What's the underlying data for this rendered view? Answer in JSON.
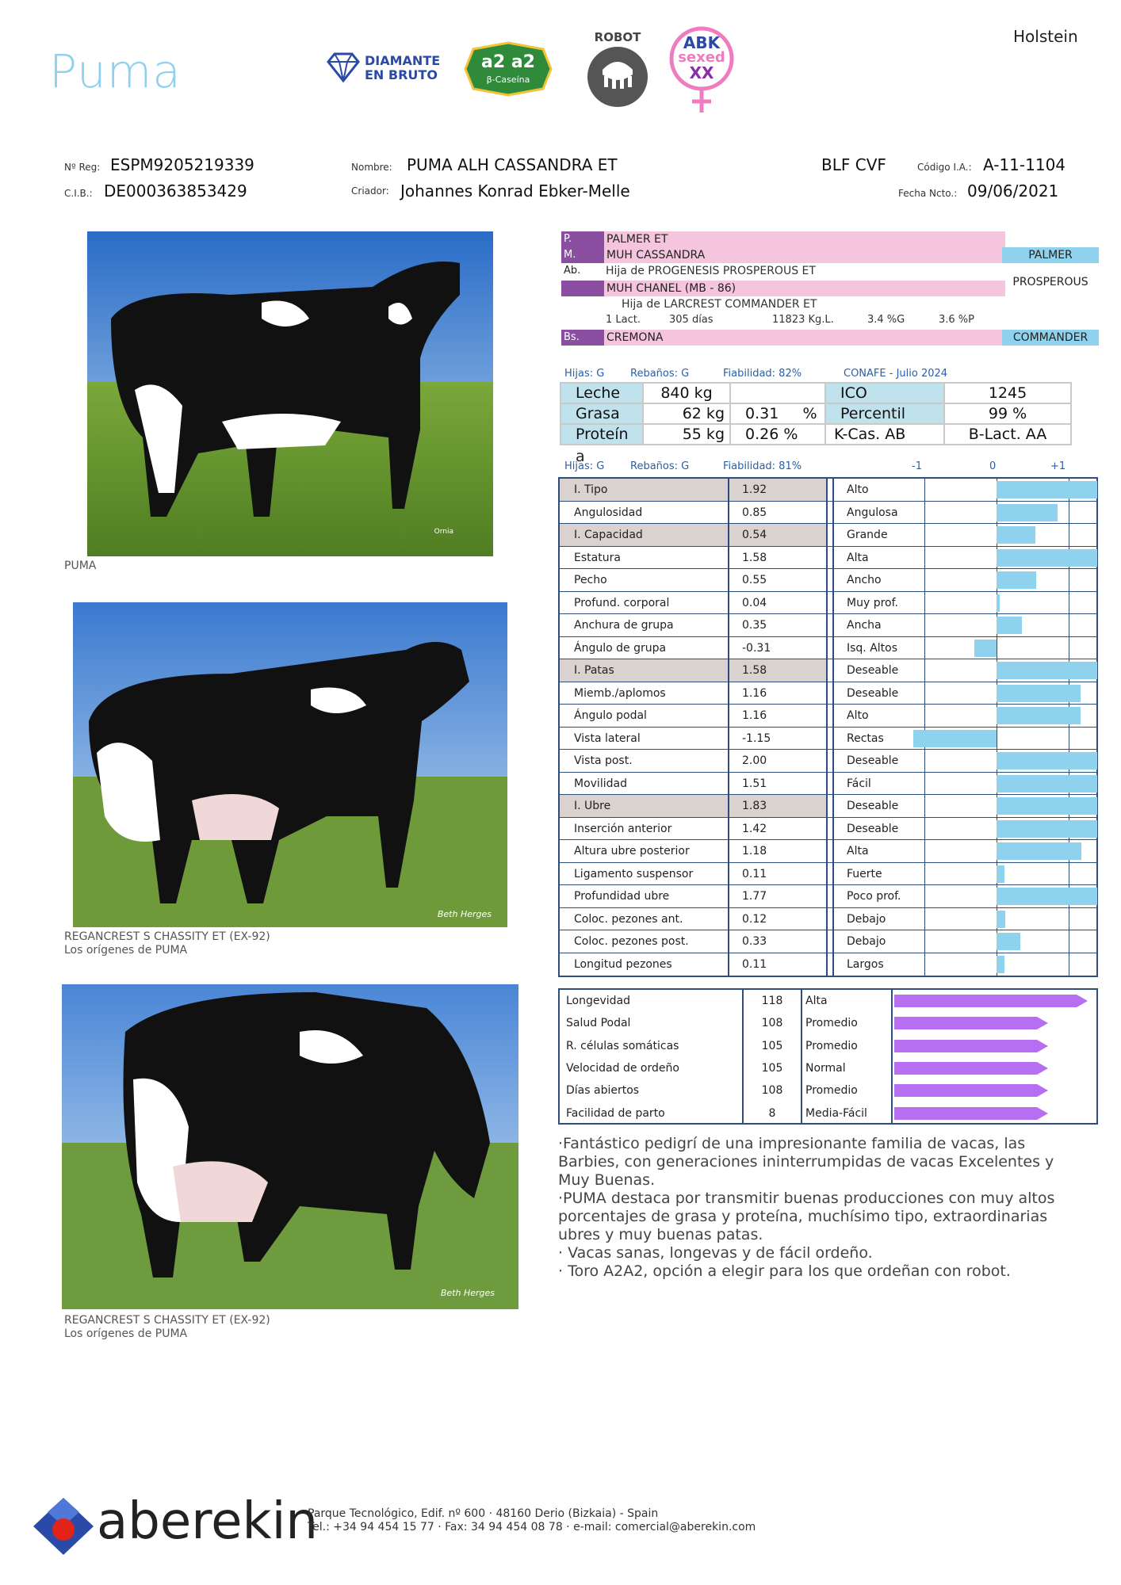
{
  "header": {
    "title": "Puma",
    "breed": "Holstein",
    "badges": {
      "diamante_line1": "DIAMANTE",
      "diamante_line2": "EN BRUTO",
      "a2": "a2 a2",
      "a2_sub": "β-Caseína",
      "robot": "ROBOT",
      "abk": "ABK",
      "sexed": "sexed",
      "xx": "XX"
    }
  },
  "id": {
    "reg_label": "Nº Reg:",
    "reg": "ESPM9205219339",
    "cib_label": "C.I.B.:",
    "cib": "DE000363853429",
    "name_label": "Nombre:",
    "name": "PUMA ALH CASSANDRA ET",
    "breeder_label": "Criador:",
    "breeder": "Johannes Konrad Ebker-Melle",
    "codes": "BLF CVF",
    "ia_label": "Código I.A.:",
    "ia": "A-11-1104",
    "birth_label": "Fecha Ncto.:",
    "birth": "09/06/2021"
  },
  "photos": [
    {
      "caption1": "PUMA",
      "caption2": "",
      "credit": "Ornia"
    },
    {
      "caption1": "REGANCREST S CHASSITY ET (EX-92)",
      "caption2": "Los orígenes de PUMA",
      "credit": "Beth Herges"
    },
    {
      "caption1": "REGANCREST S CHASSITY ET (EX-92)",
      "caption2": "Los orígenes de PUMA",
      "credit": "Beth Herges"
    }
  ],
  "pedigree": {
    "p_key": "P.",
    "p": "PALMER ET",
    "m_key": "M.",
    "m": "MUH CASSANDRA",
    "ab_key": "Ab.",
    "ab": "Hija de PROGENESIS PROSPEROUS ET",
    "gm": "MUH CHANEL    (MB - 86)",
    "gm_sub": "Hija de LARCREST COMMANDER ET",
    "lact": [
      "1 Lact.",
      "305 días",
      "11823 Kg.L.",
      "3.4 %G",
      "3.6 %P"
    ],
    "bs_key": "Bs.",
    "bs": "CREMONA",
    "tags": [
      "PALMER",
      "PROSPEROUS",
      "COMMANDER"
    ]
  },
  "production": {
    "meta": {
      "hijas": "Hijas: G",
      "rebanos": "Rebaños: G",
      "fiabilidad": "Fiabilidad: 82%",
      "source": "CONAFE - Julio 2024"
    },
    "rows": [
      {
        "label": "Leche",
        "kg": "840 kg",
        "pct": "",
        "k2": "ICO",
        "v2": "1245"
      },
      {
        "label": "Grasa",
        "kg": "62 kg",
        "pct": "0.31     %",
        "k2": "Percentil",
        "v2": "99 %"
      },
      {
        "label": "Proteín",
        "label2": "a",
        "kg": "55 kg",
        "pct": "0.26 %",
        "k2": "K-Cas. AB",
        "v2": "B-Lact. AA"
      }
    ]
  },
  "type_meta": {
    "hijas": "Hijas: G",
    "rebanos": "Rebaños: G",
    "fiabilidad": "Fiabilidad: 81%",
    "minus": "-1",
    "zero": "0",
    "plus": "+1"
  },
  "linear": [
    {
      "name": "I. Tipo",
      "value": "1.92",
      "desc": "Alto",
      "idx": true
    },
    {
      "name": "Angulosidad",
      "value": "0.85",
      "desc": "Angulosa"
    },
    {
      "name": "I. Capacidad",
      "value": "0.54",
      "desc": "Grande",
      "idx": true
    },
    {
      "name": "Estatura",
      "value": "1.58",
      "desc": "Alta"
    },
    {
      "name": "Pecho",
      "value": "0.55",
      "desc": "Ancho"
    },
    {
      "name": "Profund. corporal",
      "value": "0.04",
      "desc": "Muy  prof."
    },
    {
      "name": "Anchura de grupa",
      "value": "0.35",
      "desc": "Ancha"
    },
    {
      "name": "Ángulo de grupa",
      "value": "-0.31",
      "desc": "Isq.   Altos"
    },
    {
      "name": "I. Patas",
      "value": "1.58",
      "desc": "Deseable",
      "idx": true
    },
    {
      "name": "Miemb./aplomos",
      "value": "1.16",
      "desc": "Deseable"
    },
    {
      "name": "Ángulo podal",
      "value": "1.16",
      "desc": "Alto"
    },
    {
      "name": "Vista lateral",
      "value": "-1.15",
      "desc": "Rectas"
    },
    {
      "name": "Vista post.",
      "value": "2.00",
      "desc": "Deseable"
    },
    {
      "name": "Movilidad",
      "value": "1.51",
      "desc": "Fácil"
    },
    {
      "name": "I. Ubre",
      "value": "1.83",
      "desc": "Deseable",
      "idx": true
    },
    {
      "name": "Inserción anterior",
      "value": "1.42",
      "desc": "Deseable"
    },
    {
      "name": "Altura ubre posterior",
      "value": "1.18",
      "desc": "Alta"
    },
    {
      "name": "Ligamento suspensor",
      "value": "0.11",
      "desc": "Fuerte"
    },
    {
      "name": "Profundidad ubre",
      "value": "1.77",
      "desc": "Poco prof."
    },
    {
      "name": "Coloc. pezones ant.",
      "value": "0.12",
      "desc": "Debajo"
    },
    {
      "name": "Coloc. pezones post.",
      "value": "0.33",
      "desc": "Debajo"
    },
    {
      "name": "Longitud pezones",
      "value": "0.11",
      "desc": "Largos"
    }
  ],
  "functional": [
    {
      "name": "Longevidad",
      "value": "118",
      "desc": "Alta"
    },
    {
      "name": "Salud Podal",
      "value": "108",
      "desc": "Promedio"
    },
    {
      "name": "R. células somáticas",
      "value": "105",
      "desc": "Promedio"
    },
    {
      "name": "Velocidad de ordeño",
      "value": "105",
      "desc": "Normal"
    },
    {
      "name": "Días abiertos",
      "value": "108",
      "desc": "Promedio"
    },
    {
      "name": "Facilidad de parto",
      "value": "8",
      "desc": "Media-Fácil"
    }
  ],
  "notes": {
    "p1": "·Fantástico pedigrí de una impresionante familia de vacas, las Barbies, con generaciones ininterrumpidas de vacas Excelentes y Muy Buenas.",
    "p2": "·PUMA destaca por transmitir buenas producciones con muy altos porcentajes de grasa y proteína, muchísimo tipo, extraordinarias ubres y muy buenas patas.",
    "b1": "·   Vacas sanas, longevas y de fácil ordeño.",
    "b2": "·   Toro A2A2, opción a elegir para los que ordeñan con robot."
  },
  "footer": {
    "brand": "aberekin",
    "line1": "Parque Tecnológico, Edif. nº 600 · 48160 Derio (Bizkaia) - Spain",
    "line2": "Tel.: +34 94 454 15 77 · Fax: 34 94 454 08 78 · e-mail: comercial@aberekin.com"
  },
  "colors": {
    "accent_blue": "#8fd2ee",
    "pink": "#f5c4dd",
    "purple": "#8a4fa0",
    "arrow": "#b56ff0",
    "frame": "#2e4d7a"
  }
}
